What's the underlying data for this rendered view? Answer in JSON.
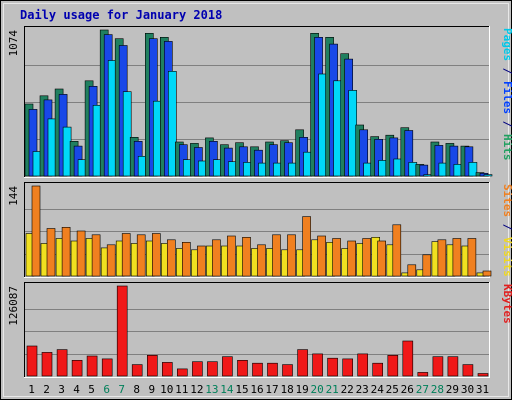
{
  "chart_data": {
    "type": "bar",
    "title": "Daily usage for January 2018",
    "categories": [
      "1",
      "2",
      "3",
      "4",
      "5",
      "6",
      "7",
      "8",
      "9",
      "10",
      "11",
      "12",
      "13",
      "14",
      "15",
      "16",
      "17",
      "18",
      "19",
      "20",
      "21",
      "22",
      "23",
      "24",
      "25",
      "26",
      "27",
      "28",
      "29",
      "30",
      "31"
    ],
    "weekend_days": [
      "6",
      "7",
      "13",
      "14",
      "20",
      "21",
      "27",
      "28"
    ],
    "panels": [
      {
        "id": "hits-files-pages",
        "max_label": "1074",
        "ymax": 1074,
        "ylabel": [
          {
            "text": "Pages",
            "color": "#00c8e8"
          },
          {
            "text": " / ",
            "color": "#000080"
          },
          {
            "text": "Files",
            "color": "#0040ff"
          },
          {
            "text": " / ",
            "color": "#000080"
          },
          {
            "text": "Hits",
            "color": "#20a060"
          }
        ],
        "series": [
          {
            "name": "Hits",
            "color": "#208060",
            "values": [
              530,
              590,
              640,
              255,
              700,
              1074,
              1010,
              285,
              1050,
              1020,
              250,
              240,
              280,
              230,
              245,
              215,
              250,
              260,
              340,
              1050,
              1020,
              900,
              375,
              290,
              300,
              355,
              85,
              250,
              240,
              220,
              25
            ]
          },
          {
            "name": "Files",
            "color": "#1848e8",
            "values": [
              490,
              560,
              600,
              220,
              660,
              1040,
              960,
              255,
              1010,
              990,
              230,
              210,
              255,
              205,
              215,
              190,
              230,
              245,
              285,
              1020,
              970,
              860,
              340,
              270,
              280,
              335,
              80,
              225,
              220,
              215,
              20
            ]
          },
          {
            "name": "Pages",
            "color": "#00d8f8",
            "values": [
              180,
              420,
              360,
              120,
              520,
              850,
              620,
              145,
              550,
              770,
              120,
              110,
              120,
              105,
              100,
              95,
              95,
              95,
              175,
              750,
              700,
              630,
              95,
              115,
              125,
              100,
              10,
              95,
              85,
              100,
              10
            ]
          }
        ]
      },
      {
        "id": "visits-sites",
        "max_label": "144",
        "ymax": 144,
        "ylabel": [
          {
            "text": "Sites",
            "color": "#f08020"
          },
          {
            "text": " / ",
            "color": "#000080"
          },
          {
            "text": "Visits",
            "color": "#f0d820"
          }
        ],
        "series": [
          {
            "name": "Visits",
            "color": "#f0e020",
            "values": [
              68,
              52,
              60,
              56,
              60,
              45,
              56,
              52,
              56,
              52,
              44,
              42,
              48,
              48,
              48,
              44,
              44,
              42,
              42,
              58,
              54,
              44,
              52,
              62,
              50,
              5,
              10,
              55,
              50,
              48,
              5
            ]
          },
          {
            "name": "Sites",
            "color": "#f08020",
            "values": [
              144,
              76,
              78,
              72,
              66,
              50,
              68,
              66,
              68,
              58,
              54,
              48,
              58,
              64,
              62,
              50,
              66,
              66,
              95,
              64,
              60,
              56,
              60,
              56,
              82,
              18,
              34,
              58,
              60,
              60,
              8
            ]
          }
        ]
      },
      {
        "id": "kbytes",
        "max_label": "126087",
        "ymax": 126087,
        "ylabel": [
          {
            "text": "KBytes",
            "color": "#e02020"
          }
        ],
        "series": [
          {
            "name": "KBytes",
            "color": "#f01818",
            "values": [
              42000,
              33000,
              37000,
              22000,
              28000,
              24000,
              126087,
              16000,
              29000,
              19000,
              10000,
              20000,
              20000,
              27000,
              22000,
              18000,
              18000,
              16000,
              37000,
              31000,
              25000,
              24000,
              31000,
              18000,
              29000,
              49000,
              5000,
              27000,
              27000,
              16000,
              3500
            ]
          }
        ]
      }
    ]
  }
}
